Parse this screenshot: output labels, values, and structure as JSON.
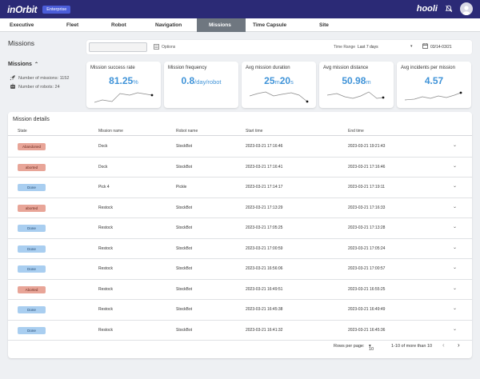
{
  "app": {
    "logo": "inOrbit",
    "edition": "Enterprise",
    "brand": "hooli"
  },
  "tabs": [
    "Executive",
    "Fleet",
    "Robot",
    "Navigation",
    "Missions",
    "Time Capsule",
    "Site"
  ],
  "active_tab": "Missions",
  "page_title": "Missions",
  "filters": {
    "search_value": "",
    "options_label": "Options",
    "time_range_label": "Time Range",
    "time_range_value": "Last 7 days",
    "date_range": "03/14-03/21"
  },
  "sidebar": {
    "title": "Missions",
    "missions_count": "Number of missions: 1152",
    "robots_count": "Number of robots: 24"
  },
  "cards": [
    {
      "label": "Mission success rate",
      "value": "81.25",
      "unit": "%"
    },
    {
      "label": "Mission frequency",
      "value": "0.8",
      "unit": "/day/robot"
    },
    {
      "label": "Avg mission duration",
      "value_a": "25",
      "unit_a": "m",
      "value_b": "20",
      "unit_b": "s"
    },
    {
      "label": "Avg mission distance",
      "value": "50.98",
      "unit": "m"
    },
    {
      "label": "Avg incidents per mission",
      "value": "4.57",
      "unit": ""
    }
  ],
  "details": {
    "title": "Mission details",
    "columns": [
      "State",
      "Mission name",
      "Robot name",
      "Start time",
      "End time"
    ],
    "rows": [
      {
        "state": "Abandoned",
        "kind": "abandoned",
        "mission": "Dock",
        "robot": "StockBot",
        "start": "2023-03-21 17:16:46",
        "end": "2023-03-21 19:21:43"
      },
      {
        "state": "aborted",
        "kind": "aborted",
        "mission": "Dock",
        "robot": "StockBot",
        "start": "2023-03-21 17:16:41",
        "end": "2023-03-21 17:16:46"
      },
      {
        "state": "Done",
        "kind": "done",
        "mission": "Pick 4",
        "robot": "Pickle",
        "start": "2023-03-21 17:14:17",
        "end": "2023-03-21 17:19:11"
      },
      {
        "state": "aborted",
        "kind": "aborted",
        "mission": "Restock",
        "robot": "StockBot",
        "start": "2023-03-21 17:13:29",
        "end": "2023-03-21 17:16:33"
      },
      {
        "state": "Done",
        "kind": "done",
        "mission": "Restock",
        "robot": "StockBot",
        "start": "2023-03-21 17:05:25",
        "end": "2023-03-21 17:13:28"
      },
      {
        "state": "Done",
        "kind": "done",
        "mission": "Restock",
        "robot": "StockBot",
        "start": "2023-03-21 17:00:59",
        "end": "2023-03-21 17:05:24"
      },
      {
        "state": "Done",
        "kind": "done",
        "mission": "Restock",
        "robot": "StockBot",
        "start": "2023-03-21 16:56:06",
        "end": "2023-03-21 17:00:57"
      },
      {
        "state": "Aborted",
        "kind": "aborted",
        "mission": "Restock",
        "robot": "StockBot",
        "start": "2023-03-21 16:49:51",
        "end": "2023-03-21 16:55:25"
      },
      {
        "state": "Done",
        "kind": "done",
        "mission": "Restock",
        "robot": "StockBot",
        "start": "2023-03-21 16:45:38",
        "end": "2023-03-21 16:49:49"
      },
      {
        "state": "Done",
        "kind": "done",
        "mission": "Restock",
        "robot": "StockBot",
        "start": "2023-03-21 16:41:32",
        "end": "2023-03-21 16:45:36"
      }
    ]
  },
  "pager": {
    "rows_per_page_label": "Rows per page:",
    "rows_per_page": "10",
    "range": "1-10 of more than 10"
  },
  "colors": {
    "topbar": "#2b2a76",
    "accent": "#3f93d8",
    "active_tab": "#6f7780",
    "done": "#a9cef0",
    "aborted": "#e8a598"
  }
}
